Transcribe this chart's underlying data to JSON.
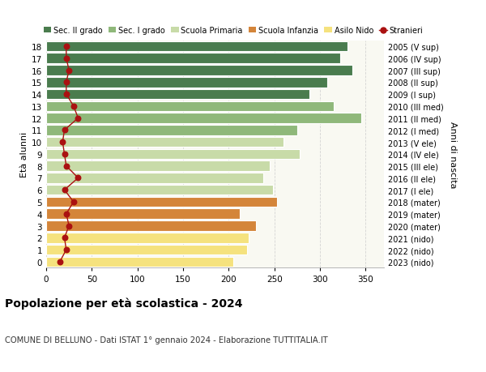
{
  "ages": [
    0,
    1,
    2,
    3,
    4,
    5,
    6,
    7,
    8,
    9,
    10,
    11,
    12,
    13,
    14,
    15,
    16,
    17,
    18
  ],
  "bar_values": [
    205,
    220,
    222,
    230,
    212,
    253,
    248,
    238,
    245,
    278,
    260,
    275,
    345,
    315,
    288,
    308,
    335,
    322,
    330
  ],
  "right_labels": [
    "2023 (nido)",
    "2022 (nido)",
    "2021 (nido)",
    "2020 (mater)",
    "2019 (mater)",
    "2018 (mater)",
    "2017 (I ele)",
    "2016 (II ele)",
    "2015 (III ele)",
    "2014 (IV ele)",
    "2013 (V ele)",
    "2012 (I med)",
    "2011 (II med)",
    "2010 (III med)",
    "2009 (I sup)",
    "2008 (II sup)",
    "2007 (III sup)",
    "2006 (IV sup)",
    "2005 (V sup)"
  ],
  "bar_colors": [
    "#f5e27e",
    "#f5e27e",
    "#f5e27e",
    "#d4853a",
    "#d4853a",
    "#d4853a",
    "#c8dba8",
    "#c8dba8",
    "#c8dba8",
    "#c8dba8",
    "#c8dba8",
    "#8fb87a",
    "#8fb87a",
    "#8fb87a",
    "#4a7c4e",
    "#4a7c4e",
    "#4a7c4e",
    "#4a7c4e",
    "#4a7c4e"
  ],
  "stranieri_values": [
    15,
    22,
    20,
    25,
    22,
    30,
    20,
    35,
    22,
    20,
    18,
    20,
    35,
    30,
    22,
    22,
    25,
    22,
    22
  ],
  "legend_labels": [
    "Sec. II grado",
    "Sec. I grado",
    "Scuola Primaria",
    "Scuola Infanzia",
    "Asilo Nido",
    "Stranieri"
  ],
  "legend_colors": [
    "#4a7c4e",
    "#8fb87a",
    "#c8dba8",
    "#d4853a",
    "#f5e27e",
    "#aa1111"
  ],
  "ylabel_left": "Età alunni",
  "ylabel_right": "Anni di nascita",
  "title": "Popolazione per età scolastica - 2024",
  "subtitle": "COMUNE DI BELLUNO - Dati ISTAT 1° gennaio 2024 - Elaborazione TUTTITALIA.IT",
  "xlim": [
    0,
    370
  ],
  "background_color": "#ffffff",
  "ax_facecolor": "#f9f9f2",
  "grid_color": "#cccccc"
}
